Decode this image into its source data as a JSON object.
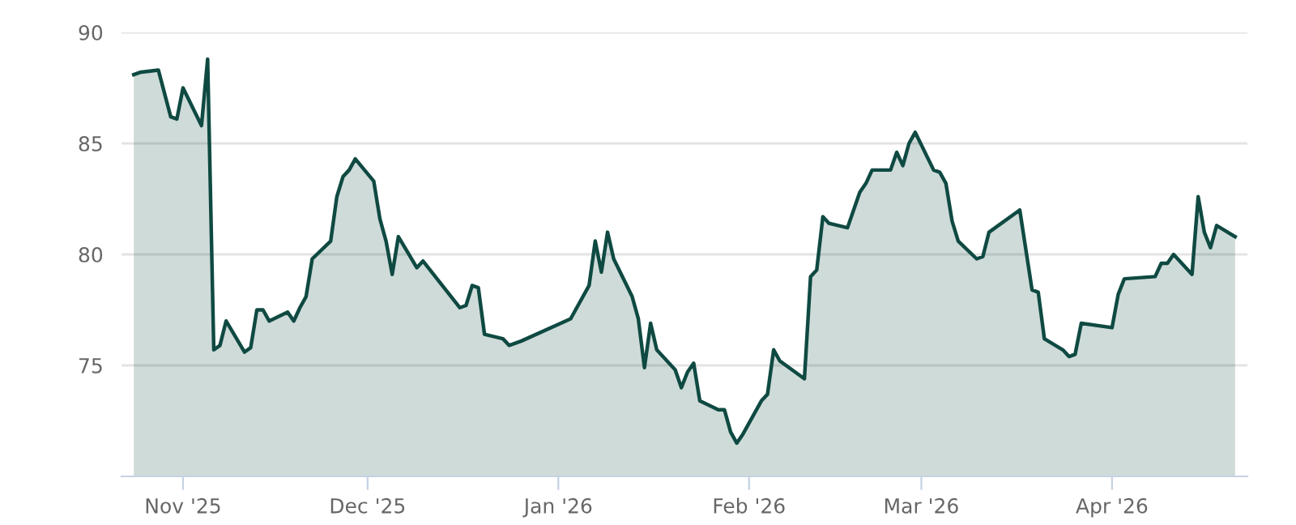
{
  "chart_data": {
    "type": "area",
    "x": [
      "2025-10-24",
      "2025-10-25",
      "2025-10-28",
      "2025-10-30",
      "2025-10-31",
      "2025-11-01",
      "2025-11-04",
      "2025-11-05",
      "2025-11-06",
      "2025-11-07",
      "2025-11-08",
      "2025-11-11",
      "2025-11-12",
      "2025-11-13",
      "2025-11-14",
      "2025-11-15",
      "2025-11-18",
      "2025-11-19",
      "2025-11-20",
      "2025-11-21",
      "2025-11-22",
      "2025-11-25",
      "2025-11-26",
      "2025-11-27",
      "2025-11-28",
      "2025-11-29",
      "2025-12-02",
      "2025-12-03",
      "2025-12-04",
      "2025-12-05",
      "2025-12-06",
      "2025-12-09",
      "2025-12-10",
      "2025-12-16",
      "2025-12-17",
      "2025-12-18",
      "2025-12-19",
      "2025-12-20",
      "2025-12-23",
      "2025-12-24",
      "2025-12-26",
      "2026-01-03",
      "2026-01-06",
      "2026-01-07",
      "2026-01-08",
      "2026-01-09",
      "2026-01-10",
      "2026-01-13",
      "2026-01-14",
      "2026-01-15",
      "2026-01-16",
      "2026-01-17",
      "2026-01-20",
      "2026-01-21",
      "2026-01-22",
      "2026-01-23",
      "2026-01-24",
      "2026-01-27",
      "2026-01-28",
      "2026-01-29",
      "2026-01-30",
      "2026-01-31",
      "2026-02-03",
      "2026-02-04",
      "2026-02-05",
      "2026-02-06",
      "2026-02-10",
      "2026-02-11",
      "2026-02-12",
      "2026-02-13",
      "2026-02-14",
      "2026-02-17",
      "2026-02-19",
      "2026-02-20",
      "2026-02-21",
      "2026-02-24",
      "2026-02-25",
      "2026-02-26",
      "2026-02-27",
      "2026-02-28",
      "2026-03-03",
      "2026-03-04",
      "2026-03-05",
      "2026-03-06",
      "2026-03-07",
      "2026-03-10",
      "2026-03-11",
      "2026-03-12",
      "2026-03-17",
      "2026-03-19",
      "2026-03-20",
      "2026-03-21",
      "2026-03-24",
      "2026-03-25",
      "2026-03-26",
      "2026-03-27",
      "2026-04-01",
      "2026-04-02",
      "2026-04-03",
      "2026-04-08",
      "2026-04-09",
      "2026-04-10",
      "2026-04-11",
      "2026-04-14",
      "2026-04-15",
      "2026-04-16",
      "2026-04-17",
      "2026-04-18",
      "2026-04-21"
    ],
    "series": [
      {
        "color": "#0f4a42",
        "values": [
          88.1,
          88.2,
          88.3,
          86.2,
          86.1,
          87.5,
          85.8,
          88.8,
          75.7,
          75.9,
          77.0,
          75.6,
          75.8,
          77.5,
          77.5,
          77.0,
          77.4,
          77.0,
          77.6,
          78.1,
          79.8,
          80.6,
          82.6,
          83.5,
          83.8,
          84.3,
          83.3,
          81.6,
          80.6,
          79.1,
          80.8,
          79.4,
          79.7,
          77.6,
          77.7,
          78.6,
          78.5,
          76.4,
          76.2,
          75.9,
          76.1,
          77.1,
          78.6,
          80.6,
          79.2,
          81.0,
          79.8,
          78.1,
          77.1,
          74.9,
          76.9,
          75.7,
          74.8,
          74.0,
          74.7,
          75.1,
          73.4,
          73.0,
          73.0,
          72.0,
          71.5,
          71.9,
          73.4,
          73.7,
          75.7,
          75.2,
          74.4,
          79.0,
          79.3,
          81.7,
          81.4,
          81.2,
          82.8,
          83.2,
          83.8,
          83.8,
          84.6,
          84.0,
          85.0,
          85.5,
          83.8,
          83.7,
          83.2,
          81.5,
          80.6,
          79.8,
          79.9,
          81.0,
          82.0,
          78.4,
          78.3,
          76.2,
          75.7,
          75.4,
          75.5,
          76.9,
          76.7,
          78.2,
          78.9,
          79.0,
          79.6,
          79.6,
          80.0,
          79.1,
          82.6,
          81.0,
          80.3,
          81.3,
          80.8
        ]
      }
    ],
    "xlim": [
      "2025-10-22",
      "2026-04-23"
    ],
    "xticks": [
      {
        "value": "2025-11-01",
        "label": "Nov '25"
      },
      {
        "value": "2025-12-01",
        "label": "Dec '25"
      },
      {
        "value": "2026-01-01",
        "label": "Jan '26"
      },
      {
        "value": "2026-02-01",
        "label": "Feb '26"
      },
      {
        "value": "2026-03-01",
        "label": "Mar '26"
      },
      {
        "value": "2026-04-01",
        "label": "Apr '26"
      }
    ],
    "ylim": [
      70,
      90
    ],
    "yticks": [
      75,
      80,
      85,
      90
    ],
    "grid": "y"
  }
}
